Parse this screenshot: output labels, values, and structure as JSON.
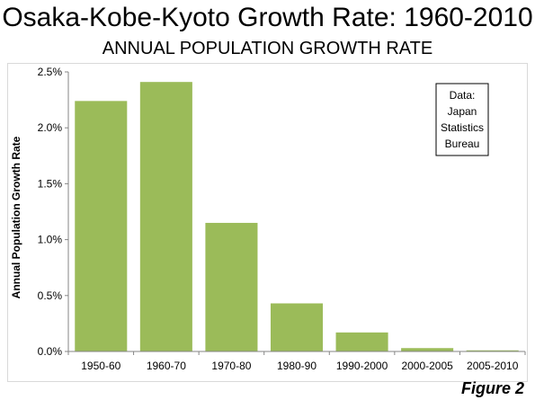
{
  "page": {
    "title": "Osaka-Kobe-Kyoto Growth Rate: 1960-2010",
    "figure_label": "Figure 2"
  },
  "chart_data": {
    "type": "bar",
    "title": "ANNUAL POPULATION GROWTH RATE",
    "xlabel": "",
    "ylabel": "Annual Population Growth Rate",
    "categories": [
      "1950-60",
      "1960-70",
      "1970-80",
      "1980-90",
      "1990-2000",
      "2000-2005",
      "2005-2010"
    ],
    "values": [
      2.24,
      2.41,
      1.15,
      0.43,
      0.17,
      0.03,
      0.01
    ],
    "unit": "%",
    "ylim": [
      0,
      2.5
    ],
    "yticks": [
      "0.0%",
      "0.5%",
      "1.0%",
      "1.5%",
      "2.0%",
      "2.5%"
    ],
    "grid": false,
    "bar_color": "#9bbb59",
    "annotation": [
      "Data:",
      "Japan",
      "Statistics",
      "Bureau"
    ]
  }
}
